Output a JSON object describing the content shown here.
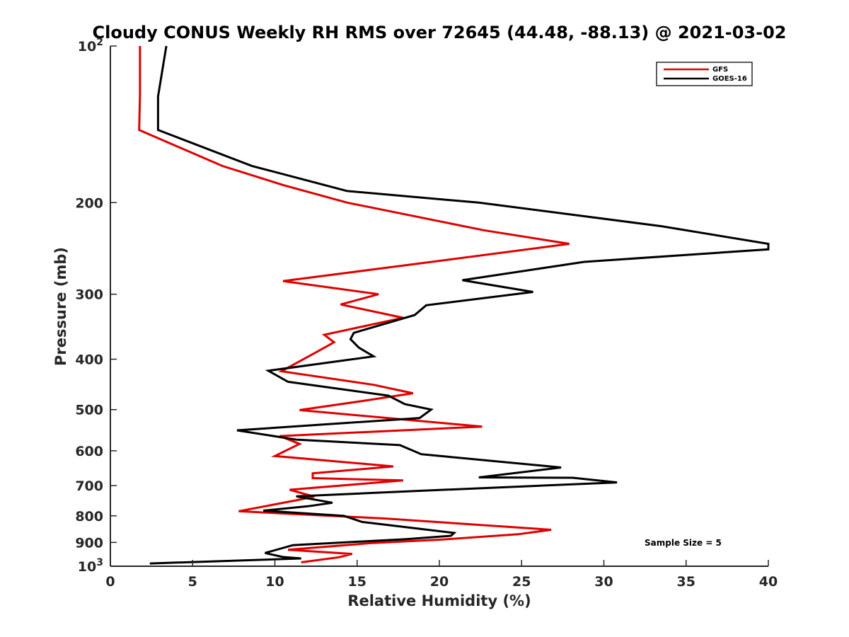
{
  "chart_data": {
    "type": "line",
    "title": "Cloudy CONUS Weekly RH RMS over 72645 (44.48, -88.13) @ 2021-03-02",
    "xlabel": "Relative Humidity (%)",
    "ylabel": "Pressure (mb)",
    "xlim": [
      0,
      40
    ],
    "ylim": [
      100,
      1000
    ],
    "y_scale": "log",
    "y_reversed": true,
    "x_ticks": [
      "0",
      "5",
      "10",
      "15",
      "20",
      "25",
      "30",
      "35",
      "40"
    ],
    "y_ticks": [
      {
        "value": 100,
        "base": "10",
        "exp": "2"
      },
      {
        "value": 200,
        "label": "200"
      },
      {
        "value": 300,
        "label": "300"
      },
      {
        "value": 400,
        "label": "400"
      },
      {
        "value": 500,
        "label": "500"
      },
      {
        "value": 600,
        "label": "600"
      },
      {
        "value": 700,
        "label": "700"
      },
      {
        "value": 800,
        "label": "800"
      },
      {
        "value": 900,
        "label": "900"
      },
      {
        "value": 1000,
        "base": "10",
        "exp": "3"
      }
    ],
    "grid": false,
    "legend_position": "top-right",
    "annotation": "Sample Size = 5",
    "series": [
      {
        "name": "GFS",
        "color": "#e00000",
        "points": [
          [
            1.8,
            100
          ],
          [
            1.8,
            125
          ],
          [
            1.75,
            145
          ],
          [
            6.8,
            170
          ],
          [
            10.5,
            185
          ],
          [
            14.4,
            200
          ],
          [
            22.7,
            226
          ],
          [
            27.9,
            240
          ],
          [
            18.7,
            262
          ],
          [
            10.5,
            283
          ],
          [
            16.3,
            300
          ],
          [
            14.0,
            314
          ],
          [
            17.8,
            333
          ],
          [
            13.0,
            359
          ],
          [
            13.6,
            371
          ],
          [
            12.5,
            388
          ],
          [
            10.4,
            422
          ],
          [
            16.0,
            448
          ],
          [
            18.4,
            465
          ],
          [
            15.2,
            482
          ],
          [
            11.5,
            501
          ],
          [
            22.6,
            539
          ],
          [
            10.3,
            562
          ],
          [
            11.5,
            582
          ],
          [
            10.0,
            614
          ],
          [
            17.2,
            643
          ],
          [
            12.3,
            663
          ],
          [
            12.3,
            677
          ],
          [
            17.8,
            684
          ],
          [
            10.9,
            713
          ],
          [
            12.4,
            735
          ],
          [
            11.3,
            747
          ],
          [
            7.8,
            784
          ],
          [
            16.8,
            810
          ],
          [
            26.8,
            851
          ],
          [
            24.8,
            868
          ],
          [
            20.1,
            889
          ],
          [
            15.8,
            903
          ],
          [
            10.8,
            930
          ],
          [
            14.7,
            947
          ],
          [
            13.9,
            961
          ],
          [
            11.6,
            983
          ]
        ]
      },
      {
        "name": "GOES-16",
        "color": "#000000",
        "points": [
          [
            3.4,
            100
          ],
          [
            2.9,
            125
          ],
          [
            2.9,
            145
          ],
          [
            8.6,
            170
          ],
          [
            14.4,
            190
          ],
          [
            22.4,
            200
          ],
          [
            33.5,
            222
          ],
          [
            40,
            240
          ],
          [
            40,
            246
          ],
          [
            28.8,
            260
          ],
          [
            21.4,
            282
          ],
          [
            25.7,
            297
          ],
          [
            19.2,
            315
          ],
          [
            18.5,
            329
          ],
          [
            14.8,
            356
          ],
          [
            14.6,
            366
          ],
          [
            15.1,
            380
          ],
          [
            16.0,
            395
          ],
          [
            9.6,
            421
          ],
          [
            10.8,
            442
          ],
          [
            16.9,
            470
          ],
          [
            17.9,
            488
          ],
          [
            19.5,
            500
          ],
          [
            18.8,
            519
          ],
          [
            7.7,
            548
          ],
          [
            11.3,
            571
          ],
          [
            17.6,
            585
          ],
          [
            18.9,
            609
          ],
          [
            27.4,
            646
          ],
          [
            22.4,
            675
          ],
          [
            28.1,
            676
          ],
          [
            30.8,
            690
          ],
          [
            18.9,
            716
          ],
          [
            11.3,
            734
          ],
          [
            13.5,
            755
          ],
          [
            12.0,
            767
          ],
          [
            9.3,
            782
          ],
          [
            14.2,
            800
          ],
          [
            15.3,
            822
          ],
          [
            20.9,
            863
          ],
          [
            20.7,
            874
          ],
          [
            18.0,
            887
          ],
          [
            11.1,
            911
          ],
          [
            9.4,
            943
          ],
          [
            10.5,
            960
          ],
          [
            11.6,
            966
          ],
          [
            2.4,
            988
          ]
        ]
      }
    ]
  }
}
